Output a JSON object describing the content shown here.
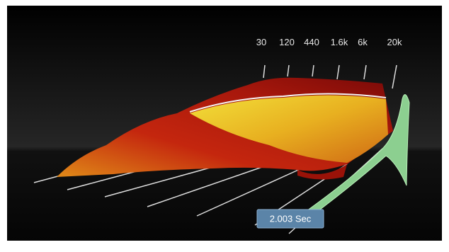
{
  "frequency_axis": {
    "labels": [
      "30",
      "120",
      "440",
      "1.6k",
      "6k",
      "20k"
    ]
  },
  "time_readout": {
    "label": "2.003 Sec"
  }
}
